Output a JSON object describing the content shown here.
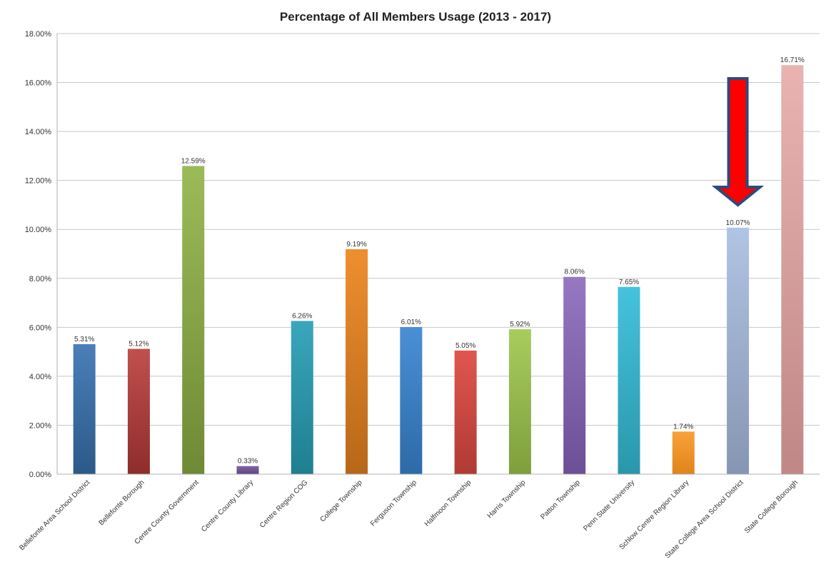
{
  "chart_data": {
    "type": "bar",
    "title": "Percentage of All Members Usage (2013 - 2017)",
    "xlabel": "",
    "ylabel": "",
    "ylim": [
      0,
      18
    ],
    "yticks": [
      "0.00%",
      "2.00%",
      "4.00%",
      "6.00%",
      "8.00%",
      "10.00%",
      "12.00%",
      "14.00%",
      "16.00%",
      "18.00%"
    ],
    "grid": true,
    "categories": [
      "Bellefonte Area School District",
      "Bellefonte Borough",
      "Centre County Government",
      "Centre County Library",
      "Centre Region COG",
      "College Township",
      "Ferguson Township",
      "Halfmoon Township",
      "Harris Township",
      "Patton Township",
      "Penn State University",
      "Schlow Centre Region Library",
      "State College Area School District",
      "State College Borough"
    ],
    "values": [
      5.31,
      5.12,
      12.59,
      0.33,
      6.26,
      9.19,
      6.01,
      5.05,
      5.92,
      8.06,
      7.65,
      1.74,
      10.07,
      16.71
    ],
    "data_labels": [
      "5.31%",
      "5.12%",
      "12.59%",
      "0.33%",
      "6.26%",
      "9.19%",
      "6.01%",
      "5.05%",
      "5.92%",
      "8.06%",
      "7.65%",
      "1.74%",
      "10.07%",
      "16.71%"
    ],
    "bar_colors": [
      [
        "#4a7fb8",
        "#2b5a88"
      ],
      [
        "#c0504d",
        "#8e2d2b"
      ],
      [
        "#9bbb59",
        "#6e8a35"
      ],
      [
        "#8064a2",
        "#5d4480"
      ],
      [
        "#3aa6bd",
        "#1f7f8f"
      ],
      [
        "#ee8f2f",
        "#b86718"
      ],
      [
        "#4a8fd6",
        "#2d6aa8"
      ],
      [
        "#e0564f",
        "#b03a34"
      ],
      [
        "#a9cc5e",
        "#7e9f3c"
      ],
      [
        "#9678c2",
        "#6c4f96"
      ],
      [
        "#45c2de",
        "#2a97aa"
      ],
      [
        "#f9a23a",
        "#e0841a"
      ],
      [
        "#b0c4e4",
        "#8696b2"
      ],
      [
        "#e9b3b1",
        "#bf8886"
      ]
    ],
    "annotation": {
      "type": "arrow-down",
      "target_category": "State College Area School District",
      "fill": "#ff0000",
      "stroke": "#2f4a7a"
    }
  }
}
